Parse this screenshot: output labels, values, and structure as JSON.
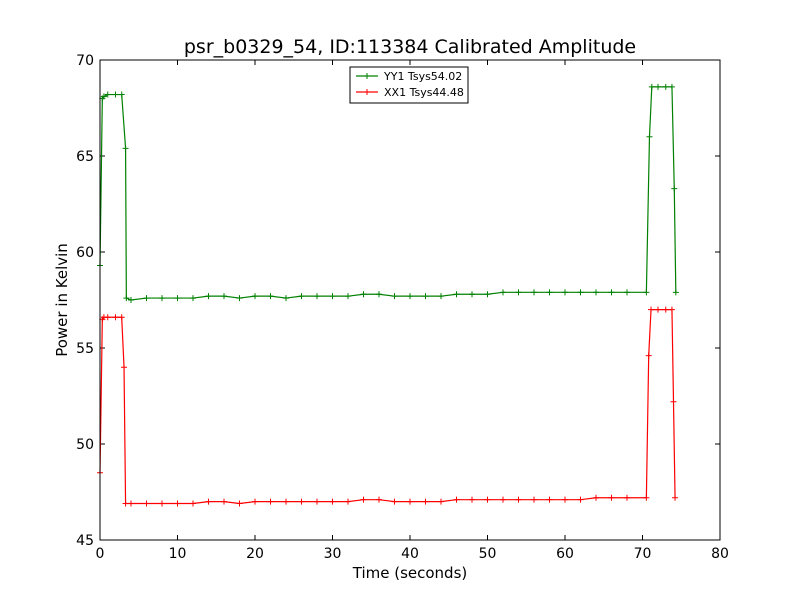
{
  "chart_data": {
    "type": "line",
    "title": "psr_b0329_54, ID:113384 Calibrated Amplitude",
    "xlabel": "Time (seconds)",
    "ylabel": "Power in Kelvin",
    "xlim": [
      0,
      80
    ],
    "ylim": [
      45,
      70
    ],
    "xticks": [
      0,
      10,
      20,
      30,
      40,
      50,
      60,
      70,
      80
    ],
    "yticks": [
      45,
      50,
      55,
      60,
      65,
      70
    ],
    "grid": false,
    "legend_position": "top-center",
    "marker": "+",
    "series": [
      {
        "name": "YY1 Tsys54.02",
        "color": "#008000",
        "x": [
          0.0,
          0.3,
          0.5,
          1,
          2,
          2.8,
          3.3,
          3.4,
          4,
          6,
          8,
          10,
          12,
          14,
          16,
          18,
          20,
          22,
          24,
          26,
          28,
          30,
          32,
          34,
          36,
          38,
          40,
          42,
          44,
          46,
          48,
          50,
          52,
          54,
          56,
          58,
          60,
          62,
          64,
          66,
          68,
          70.5,
          70.9,
          71.2,
          72,
          73,
          73.8,
          74.1,
          74.3
        ],
        "y": [
          59.3,
          68.0,
          68.1,
          68.2,
          68.2,
          68.2,
          65.4,
          57.6,
          57.5,
          57.6,
          57.6,
          57.6,
          57.6,
          57.7,
          57.7,
          57.6,
          57.7,
          57.7,
          57.6,
          57.7,
          57.7,
          57.7,
          57.7,
          57.8,
          57.8,
          57.7,
          57.7,
          57.7,
          57.7,
          57.8,
          57.8,
          57.8,
          57.9,
          57.9,
          57.9,
          57.9,
          57.9,
          57.9,
          57.9,
          57.9,
          57.9,
          57.9,
          66.0,
          68.6,
          68.6,
          68.6,
          68.6,
          63.3,
          57.9
        ]
      },
      {
        "name": "XX1 Tsys44.48",
        "color": "#ff0000",
        "x": [
          0.0,
          0.3,
          0.5,
          1,
          2,
          2.8,
          3.1,
          3.3,
          4,
          6,
          8,
          10,
          12,
          14,
          16,
          18,
          20,
          22,
          24,
          26,
          28,
          30,
          32,
          34,
          36,
          38,
          40,
          42,
          44,
          46,
          48,
          50,
          52,
          54,
          56,
          58,
          60,
          62,
          64,
          66,
          68,
          70.5,
          70.8,
          71.1,
          72,
          73,
          73.8,
          74.0,
          74.2
        ],
        "y": [
          48.5,
          56.5,
          56.6,
          56.6,
          56.6,
          56.6,
          54.0,
          46.9,
          46.9,
          46.9,
          46.9,
          46.9,
          46.9,
          47.0,
          47.0,
          46.9,
          47.0,
          47.0,
          47.0,
          47.0,
          47.0,
          47.0,
          47.0,
          47.1,
          47.1,
          47.0,
          47.0,
          47.0,
          47.0,
          47.1,
          47.1,
          47.1,
          47.1,
          47.1,
          47.1,
          47.1,
          47.1,
          47.1,
          47.2,
          47.2,
          47.2,
          47.2,
          54.6,
          57.0,
          57.0,
          57.0,
          57.0,
          52.2,
          47.2
        ]
      }
    ]
  }
}
